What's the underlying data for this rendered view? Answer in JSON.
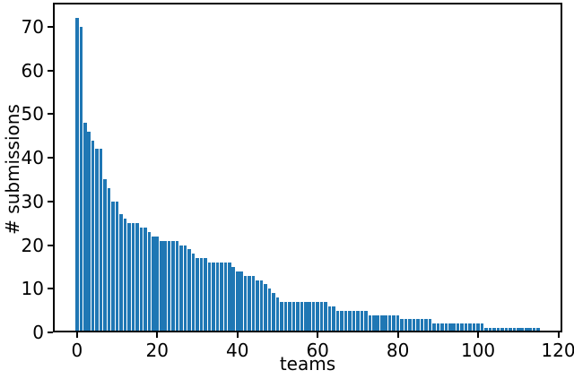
{
  "chart_data": {
    "type": "bar",
    "title": "",
    "xlabel": "teams",
    "ylabel": "# submissions",
    "x_is_index": true,
    "n_bars": 116,
    "values": [
      72,
      70,
      48,
      46,
      44,
      42,
      42,
      35,
      33,
      30,
      30,
      27,
      26,
      25,
      25,
      25,
      24,
      24,
      23,
      22,
      22,
      21,
      21,
      21,
      21,
      21,
      20,
      20,
      19,
      18,
      17,
      17,
      17,
      16,
      16,
      16,
      16,
      16,
      16,
      15,
      14,
      14,
      13,
      13,
      13,
      12,
      12,
      11,
      10,
      9,
      8,
      7,
      7,
      7,
      7,
      7,
      7,
      7,
      7,
      7,
      7,
      7,
      7,
      6,
      6,
      5,
      5,
      5,
      5,
      5,
      5,
      5,
      5,
      4,
      4,
      4,
      4,
      4,
      4,
      4,
      4,
      3,
      3,
      3,
      3,
      3,
      3,
      3,
      3,
      2,
      2,
      2,
      2,
      2,
      2,
      2,
      2,
      2,
      2,
      2,
      2,
      2,
      1,
      1,
      1,
      1,
      1,
      1,
      1,
      1,
      1,
      1,
      1,
      1,
      1,
      1
    ],
    "bar_color": "#1f77b4",
    "bar_width_units": 0.8,
    "xticks": [
      0,
      20,
      40,
      60,
      80,
      100,
      120
    ],
    "yticks": [
      0,
      10,
      20,
      30,
      40,
      50,
      60,
      70
    ],
    "xlim": [
      -6,
      121
    ],
    "ylim": [
      0,
      75.5
    ],
    "grid": false,
    "legend": null
  }
}
